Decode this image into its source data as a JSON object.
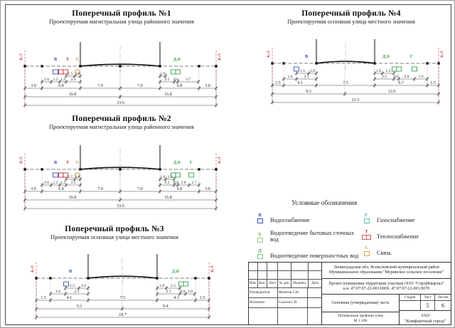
{
  "profiles": [
    {
      "id": "p1",
      "title": "Поперечный профиль №1",
      "subtitle": "Проектируемая магистральная улица районного значения",
      "kl": "К.Л",
      "letters": [
        {
          "t": "В",
          "c": "#3a50b4"
        },
        {
          "t": "Т",
          "c": "#c03030"
        },
        {
          "t": "С",
          "c": "#c8882a"
        },
        {
          "t": "Д.Б",
          "c": "#3aa050"
        }
      ],
      "small_left_upper": [
        "1.5",
        "1.0"
      ],
      "small_left": [
        "1.6",
        "1.5",
        "1.2",
        "2.5"
      ],
      "small_right_upper": [
        "1.0"
      ],
      "small_right": [
        "2.5",
        "0.6",
        "3.7"
      ],
      "row1": [
        "3.0",
        "6.8",
        "7.0",
        "7.0",
        "6.8",
        "3.0"
      ],
      "row2": [
        "16.8",
        "16.8"
      ],
      "total": "33.6"
    },
    {
      "id": "p2",
      "title": "Поперечный профиль №2",
      "subtitle": "Проектируемая магистральная улица районного значения",
      "kl": "К.Л",
      "letters": [
        {
          "t": "В",
          "c": "#3a50b4"
        },
        {
          "t": "Т",
          "c": "#c03030"
        },
        {
          "t": "С",
          "c": "#c8882a"
        },
        {
          "t": "Д.Б",
          "c": "#3aa050"
        },
        {
          "t": "Г",
          "c": "#3aa050"
        }
      ],
      "small_left_upper": [
        "1.5",
        "1.0"
      ],
      "small_left": [
        "1.6",
        "1.5",
        "1.2",
        "2.5"
      ],
      "small_right_upper": [
        "1.0",
        "1.5"
      ],
      "small_right": [
        "2.5",
        "0.6",
        "2.0",
        "1.7"
      ],
      "row1": [
        "3.0",
        "6.8",
        "7.0",
        "7.0",
        "6.8",
        "3.0"
      ],
      "row2": [
        "16.8",
        "16.8"
      ],
      "total": "33.6"
    },
    {
      "id": "p3",
      "title": "Поперечный профиль №3",
      "subtitle": "Проектируемая основная улица местного значения",
      "kl": "К.Л",
      "letters": [
        {
          "t": "В",
          "c": "#3a50b4"
        },
        {
          "t": "Д.Б",
          "c": "#3aa050"
        }
      ],
      "small_left_upper": [
        "1.5",
        "1.0"
      ],
      "small_left": [
        "1.6",
        "2.5"
      ],
      "small_right_upper": [
        "1.0",
        "1.5"
      ],
      "small_right": [
        "2.5",
        "0.6",
        "1.0"
      ],
      "row1": [
        "1.5",
        "4.1",
        "7.5",
        "4.1",
        "1.5"
      ],
      "row2": [
        "9.3",
        "9.4"
      ],
      "total": "18.7"
    },
    {
      "id": "p4",
      "title": "Поперечный профиль №4",
      "subtitle": "Проектируемая основная улица местного значения",
      "kl": "К.Л",
      "letters": [
        {
          "t": "В",
          "c": "#3a50b4"
        },
        {
          "t": "Д.Б",
          "c": "#3aa050"
        },
        {
          "t": "Г",
          "c": "#3aa050"
        }
      ],
      "small_left_upper": [
        "1.5",
        "1.0"
      ],
      "small_left": [
        "1.6",
        "2.5"
      ],
      "small_right_upper": [
        "1.0",
        "1.5"
      ],
      "small_right": [
        "2.5",
        "0.6",
        "2.0",
        "1.6"
      ],
      "row1": [
        "1.5",
        "4.1",
        "7.5",
        "6.7",
        "1.5"
      ],
      "row2": [
        "9.3",
        "12.0"
      ],
      "total": "21.3"
    }
  ],
  "legend": {
    "title": "Условные обозначения",
    "left": [
      {
        "letter": "В",
        "label": "Водоснабжение",
        "color": "#3a50b4",
        "box": "#3a50b4",
        "type": "sq"
      },
      {
        "letter": "Б",
        "label": "Водоотведение бытовых сточных вод",
        "color": "#9aa53a",
        "box": "#8bc88b",
        "type": "sq"
      },
      {
        "letter": "Д",
        "label": "Водоотведение поверхностных вод",
        "color": "#3aa050",
        "box": "#7cc87c",
        "type": "sq"
      }
    ],
    "right": [
      {
        "letter": "Г",
        "label": "Газоснабжение",
        "color": "#3fae9e",
        "box": "#5bbcae",
        "type": "sq"
      },
      {
        "letter": "Т",
        "label": "Теплоснабжение",
        "color": "#c03030",
        "box": "#c96060",
        "type": "dsq"
      },
      {
        "letter": "С",
        "label": "Связь",
        "color": "#c8882a",
        "box": "#d2a25a",
        "type": "sq"
      }
    ]
  },
  "stamp": {
    "cols": [
      "Изм.",
      "Кол.",
      "Лист",
      "№ док.",
      "Подпись",
      "Дата"
    ],
    "rows": [
      {
        "role": "Руководитель",
        "name": "Филатов С.Н."
      },
      {
        "role": "Исполнил",
        "name": "Сысоев С.В."
      }
    ],
    "region_line1": "Ленинградская обл.  Всеволожский муниципальный район",
    "region_line2": "Муниципальное образование \"Муринское сельское поселение\"",
    "project_line1": "Проект планировки территории участков ООО \"СтройКвартал\"",
    "project_line2": "к.н. 47:07:07-22-001:0069, 47:07:07-22-001:0070",
    "part": "Основная (утверждаемая) часть",
    "stage_label": "Стадия",
    "sheet_label": "Лист",
    "sheets_label": "Листов",
    "stage": "",
    "sheet": "5",
    "sheets": "6",
    "doc_title": "Поперечные профили улиц",
    "doc_scale": "М 1:200",
    "company_line1": "ЗАО",
    "company_line2": "\"Комфортный город\""
  }
}
